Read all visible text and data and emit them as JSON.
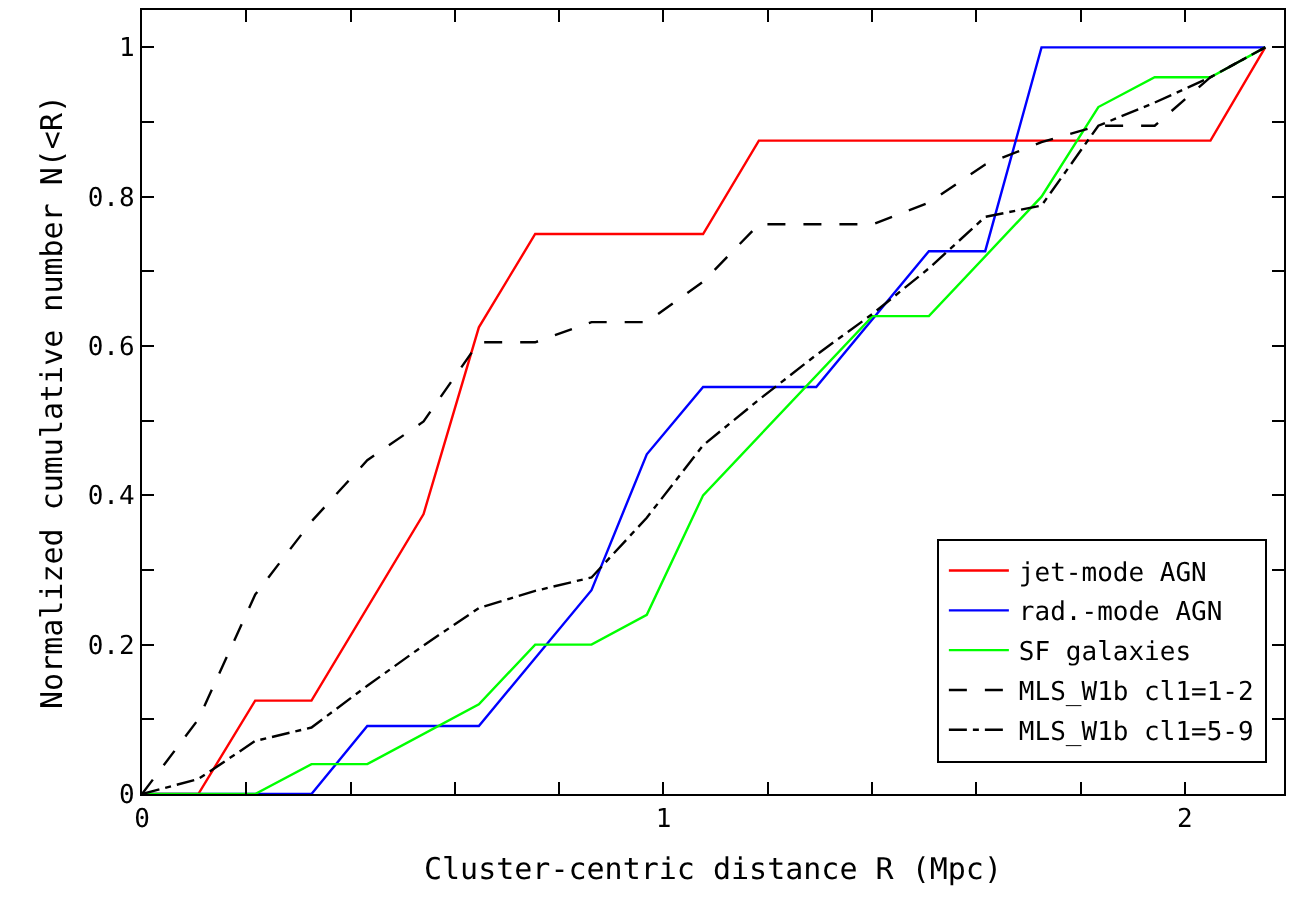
{
  "chart_data": {
    "type": "line",
    "xlabel": "Cluster-centric distance R (Mpc)",
    "ylabel": "Normalized cumulative number N(<R)",
    "xlim": [
      0,
      2.19
    ],
    "ylim": [
      0,
      1.05
    ],
    "xticks": [
      0,
      {
        "value": 0.2,
        "label": null
      },
      {
        "value": 0.4,
        "label": null
      },
      {
        "value": 0.6,
        "label": null
      },
      {
        "value": 0.8,
        "label": null
      },
      1,
      {
        "value": 1.2,
        "label": null
      },
      {
        "value": 1.4,
        "label": null
      },
      {
        "value": 1.6,
        "label": null
      },
      {
        "value": 1.8,
        "label": null
      },
      2
    ],
    "yticks": [
      0,
      {
        "value": 0.1,
        "label": null
      },
      0.2,
      {
        "value": 0.3,
        "label": null
      },
      0.4,
      {
        "value": 0.5,
        "label": null
      },
      0.6,
      {
        "value": 0.7,
        "label": null
      },
      0.8,
      {
        "value": 0.9,
        "label": null
      },
      1
    ],
    "legend": "bottom right",
    "marker": "none",
    "series": [
      {
        "name": "jet-mode AGN",
        "color": "#ff0000",
        "line_style": "solid",
        "x": [
          0,
          0.108,
          0.217,
          0.325,
          0.54,
          0.646,
          0.754,
          1.076,
          1.183,
          2.049,
          2.154
        ],
        "values": [
          0,
          0,
          0.125,
          0.125,
          0.375,
          0.625,
          0.75,
          0.75,
          0.875,
          0.875,
          1
        ]
      },
      {
        "name": "rad.-mode AGN",
        "color": "#0000ff",
        "line_style": "solid",
        "x": [
          0,
          0.325,
          0.432,
          0.646,
          0.862,
          0.968,
          1.076,
          1.293,
          1.509,
          1.617,
          1.725,
          2.154
        ],
        "values": [
          0,
          0,
          0.091,
          0.091,
          0.273,
          0.455,
          0.545,
          0.545,
          0.727,
          0.727,
          1,
          1
        ]
      },
      {
        "name": "SF galaxies",
        "color": "#00ff00",
        "line_style": "solid",
        "x": [
          0,
          0.217,
          0.325,
          0.432,
          0.646,
          0.754,
          0.862,
          0.968,
          1.076,
          1.401,
          1.509,
          1.725,
          1.834,
          1.942,
          2.049,
          2.154
        ],
        "values": [
          0,
          0,
          0.04,
          0.04,
          0.12,
          0.2,
          0.2,
          0.24,
          0.4,
          0.64,
          0.64,
          0.8,
          0.92,
          0.96,
          0.96,
          1
        ]
      },
      {
        "name": "MLS_W1b cl1=1-2",
        "color": "#000000",
        "line_style": "dashed",
        "x": [
          0,
          0.108,
          0.217,
          0.325,
          0.432,
          0.54,
          0.646,
          0.754,
          0.862,
          0.968,
          1.076,
          1.183,
          1.401,
          1.509,
          1.617,
          1.725,
          1.834,
          1.942,
          2.049,
          2.154
        ],
        "values": [
          0,
          0.1,
          0.267,
          0.365,
          0.447,
          0.499,
          0.605,
          0.605,
          0.632,
          0.632,
          0.686,
          0.763,
          0.763,
          0.792,
          0.843,
          0.873,
          0.895,
          0.895,
          0.96,
          1
        ]
      },
      {
        "name": "MLS_W1b cl1=5-9",
        "color": "#000000",
        "line_style": "dashdot",
        "x": [
          0,
          0.108,
          0.217,
          0.325,
          0.432,
          0.54,
          0.646,
          0.754,
          0.862,
          0.968,
          1.076,
          1.183,
          1.293,
          1.401,
          1.509,
          1.617,
          1.725,
          1.834,
          1.942,
          2.049,
          2.154
        ],
        "values": [
          0,
          0.02,
          0.071,
          0.089,
          0.145,
          0.199,
          0.249,
          0.272,
          0.29,
          0.37,
          0.467,
          0.528,
          0.588,
          0.643,
          0.704,
          0.773,
          0.788,
          0.895,
          0.926,
          0.96,
          1
        ]
      }
    ]
  }
}
